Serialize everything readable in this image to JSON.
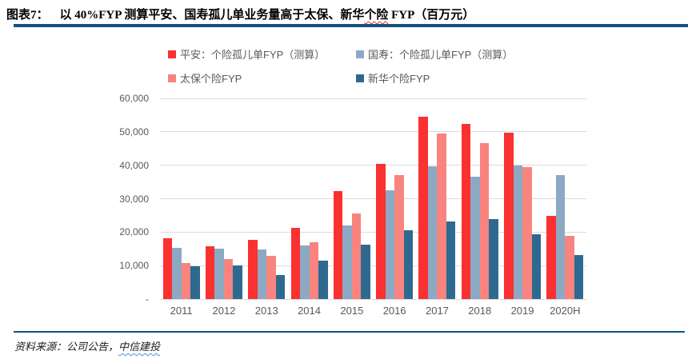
{
  "figure": {
    "label": "图表7：",
    "title_part1": "以 40%FYP 测算平安、国寿孤儿单业务量高于太保、新华",
    "title_misspelled": "个险",
    "title_part2": " FYP（百万元）"
  },
  "footer": {
    "source_prefix": "资料来源：公司公告，",
    "source_brand": "中信建投"
  },
  "colors": {
    "rule_navy": "#11527d",
    "grid": "#dcdcdc",
    "axis_text": "#595959"
  },
  "chart_data": {
    "type": "bar",
    "title": "图表7：以 40%FYP 测算平安、国寿孤儿单业务量高于太保、新华个险 FYP（百万元）",
    "xlabel": "",
    "ylabel": "",
    "categories": [
      "2011",
      "2012",
      "2013",
      "2014",
      "2015",
      "2016",
      "2017",
      "2018",
      "2019",
      "2020H"
    ],
    "series": [
      {
        "name": "平安：个险孤儿单FYP（测算）",
        "color": "#fb3030",
        "values": [
          18200,
          15700,
          17600,
          21300,
          32200,
          40400,
          54500,
          52300,
          49800,
          24800
        ]
      },
      {
        "name": "国寿：个险孤儿单FYP（测算）",
        "color": "#8ca9c4",
        "values": [
          15400,
          15100,
          14800,
          16100,
          22100,
          32500,
          39800,
          36600,
          39900,
          37100
        ]
      },
      {
        "name": "太保个险FYP",
        "color": "#f9837f",
        "values": [
          10800,
          11900,
          12900,
          17100,
          25600,
          37100,
          49400,
          46600,
          39500,
          18800
        ]
      },
      {
        "name": "新华个险FYP",
        "color": "#2e6a90",
        "values": [
          9700,
          10100,
          7200,
          11500,
          16200,
          20500,
          23300,
          23900,
          19300,
          13200
        ]
      }
    ],
    "ylim": [
      0,
      60000
    ],
    "ytick_step": 10000,
    "ytick_labels": [
      "-",
      "10,000",
      "20,000",
      "30,000",
      "40,000",
      "50,000",
      "60,000"
    ],
    "grid": true,
    "legend_position": "top"
  }
}
